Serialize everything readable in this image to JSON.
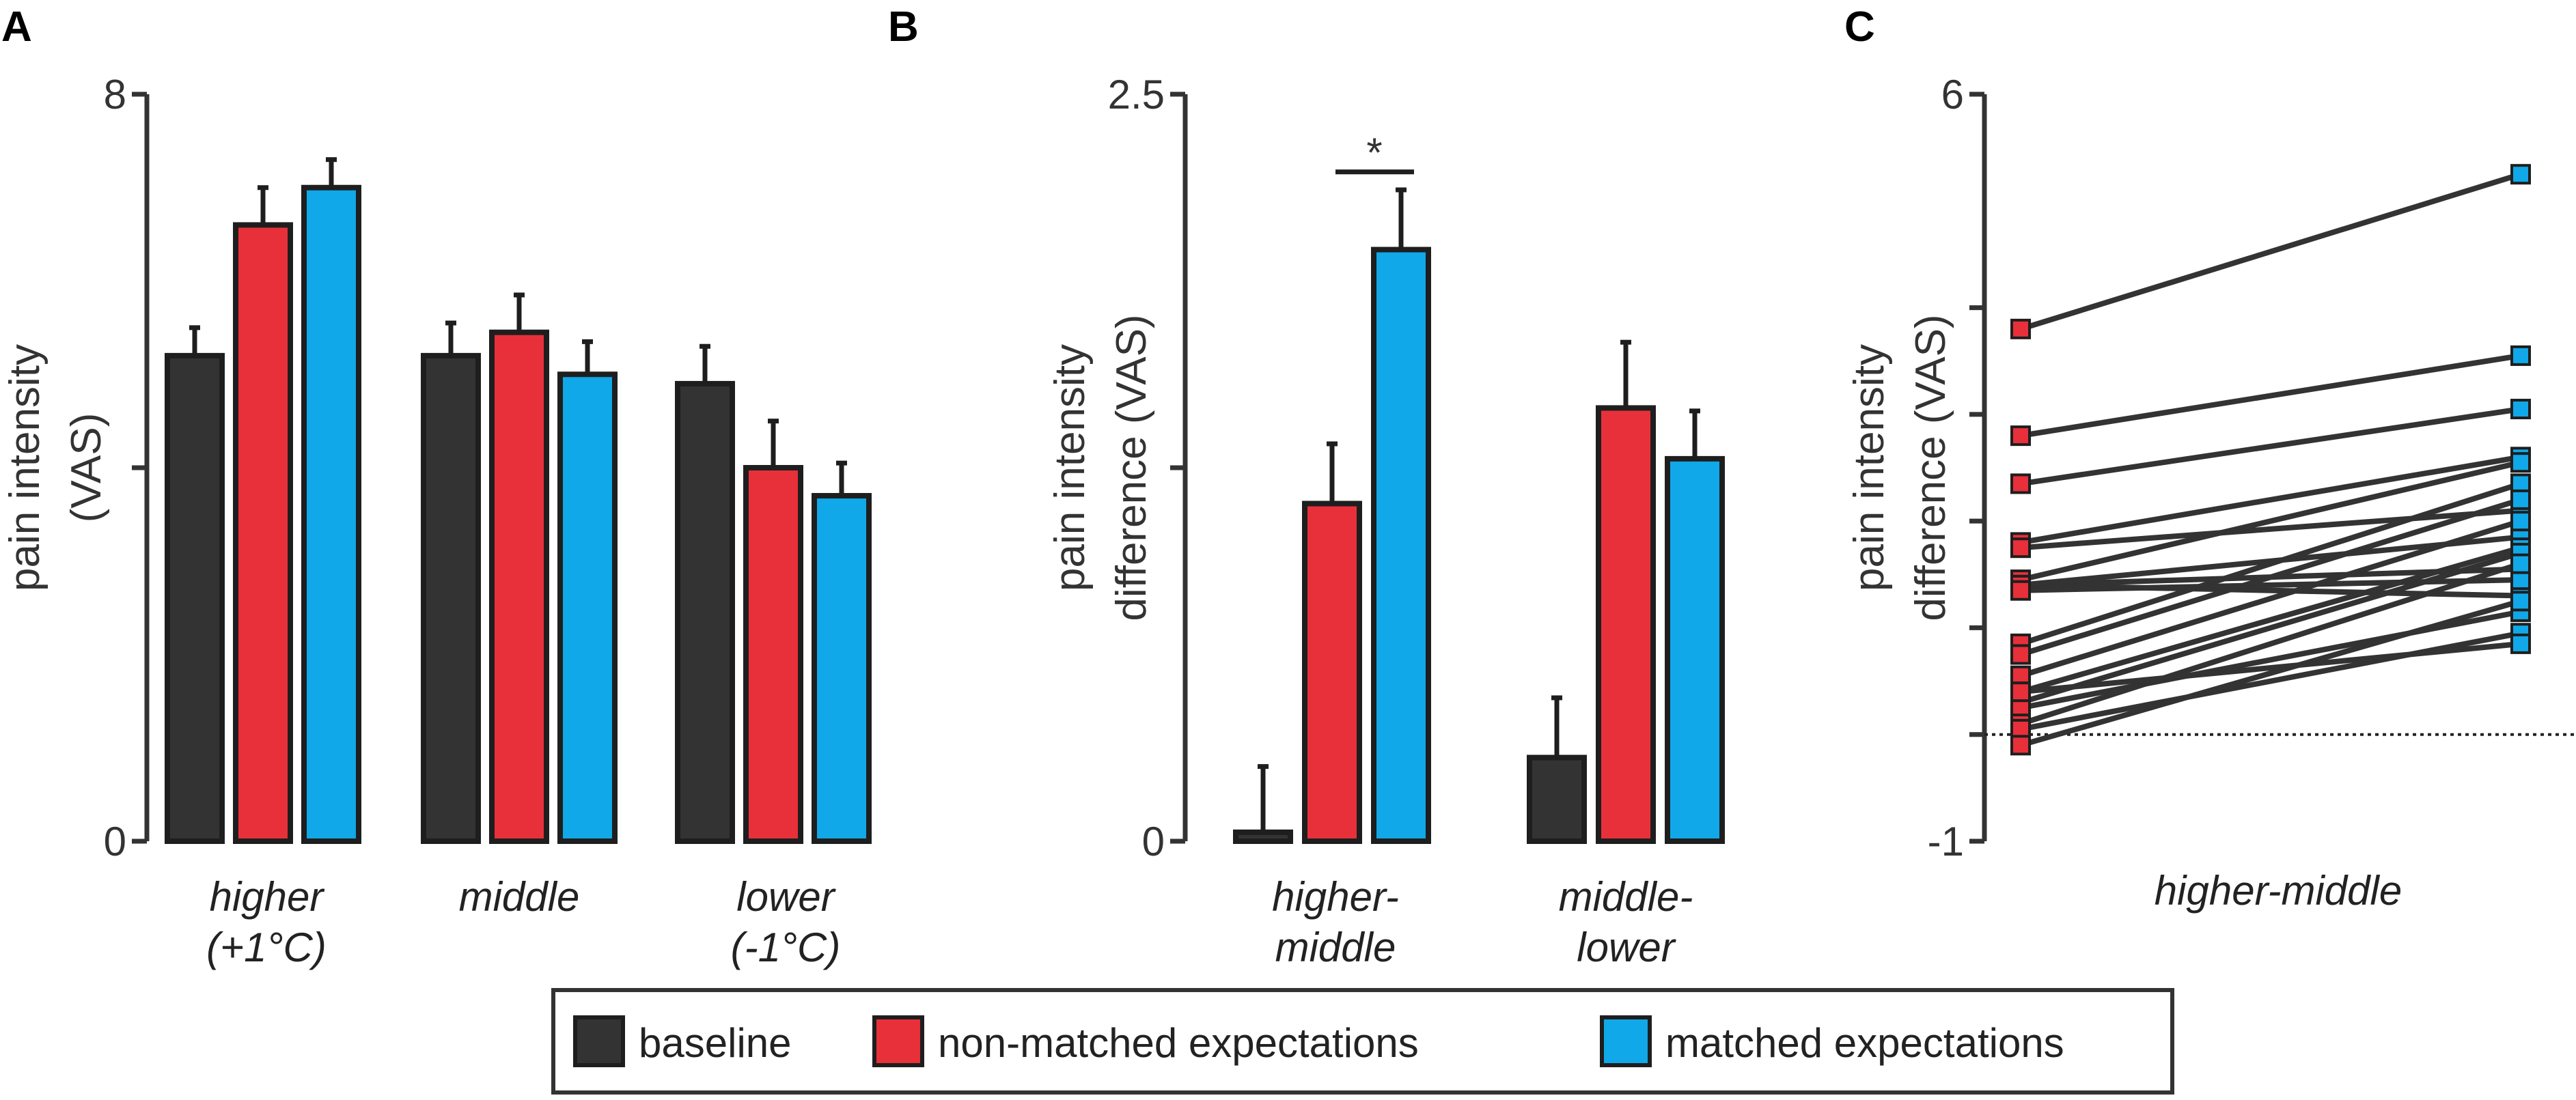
{
  "colors": {
    "baseline": "#333333",
    "non_matched": "#e8303a",
    "matched": "#10a8e8",
    "axis": "#333333"
  },
  "legend": {
    "items": [
      {
        "key": "baseline",
        "label": "baseline"
      },
      {
        "key": "non_matched",
        "label": "non-matched expectations"
      },
      {
        "key": "matched",
        "label": "matched expectations"
      }
    ]
  },
  "chart_data": [
    {
      "panel": "A",
      "type": "bar",
      "ylabel": [
        "pain intensity",
        "(VAS)"
      ],
      "ylim": [
        0,
        8
      ],
      "yticks": [
        "0",
        "4",
        "8"
      ],
      "yticks_values": [
        0,
        4,
        8
      ],
      "yticks_labeled": [
        "0",
        "8"
      ],
      "categories": [
        [
          "higher",
          "(+1°C)"
        ],
        [
          "middle"
        ],
        [
          "lower",
          "(-1°C)"
        ]
      ],
      "series": [
        {
          "name": "baseline",
          "values": [
            5.2,
            5.2,
            4.9
          ],
          "errors": [
            0.3,
            0.35,
            0.4
          ]
        },
        {
          "name": "non-matched expectations",
          "values": [
            6.6,
            5.45,
            4.0
          ],
          "errors": [
            0.4,
            0.4,
            0.5
          ]
        },
        {
          "name": "matched expectations",
          "values": [
            7.0,
            5.0,
            3.7
          ],
          "errors": [
            0.3,
            0.35,
            0.35
          ]
        }
      ]
    },
    {
      "panel": "B",
      "type": "bar",
      "ylabel": [
        "pain intensity",
        "difference (VAS)"
      ],
      "ylim": [
        0,
        2.5
      ],
      "yticks_values": [
        0,
        1.25,
        2.5
      ],
      "yticks_labeled": [
        "0",
        "2.5"
      ],
      "categories": [
        [
          "higher-",
          "middle"
        ],
        [
          "middle-",
          "lower"
        ]
      ],
      "series": [
        {
          "name": "baseline",
          "values": [
            0.03,
            0.28
          ],
          "errors": [
            0.22,
            0.2
          ]
        },
        {
          "name": "non-matched expectations",
          "values": [
            1.13,
            1.45
          ],
          "errors": [
            0.2,
            0.22
          ]
        },
        {
          "name": "matched expectations",
          "values": [
            1.98,
            1.28
          ],
          "errors": [
            0.2,
            0.16
          ]
        }
      ],
      "annotation": {
        "text": "*",
        "between": [
          "non-matched expectations",
          "matched expectations"
        ],
        "category": 0
      }
    },
    {
      "panel": "C",
      "type": "line",
      "ylabel": [
        "pain intensity",
        "difference (VAS)"
      ],
      "ylim": [
        -1,
        6
      ],
      "yticks_values": [
        -1,
        0,
        1,
        2,
        3,
        4,
        5,
        6
      ],
      "yticks_labeled": [
        "-1",
        "6"
      ],
      "reference_line": 0,
      "xlabel": "higher-middle",
      "series_points": [
        "non-matched expectations",
        "matched expectations"
      ],
      "pairs": [
        [
          3.8,
          5.25
        ],
        [
          2.8,
          3.55
        ],
        [
          2.35,
          3.05
        ],
        [
          1.8,
          2.6
        ],
        [
          1.75,
          2.1
        ],
        [
          1.45,
          2.55
        ],
        [
          1.4,
          1.55
        ],
        [
          1.4,
          1.3
        ],
        [
          1.4,
          1.85
        ],
        [
          1.35,
          1.45
        ],
        [
          0.85,
          2.35
        ],
        [
          0.75,
          2.2
        ],
        [
          0.55,
          2.0
        ],
        [
          0.4,
          1.75
        ],
        [
          0.3,
          1.7
        ],
        [
          0.25,
          1.15
        ],
        [
          0.1,
          1.6
        ],
        [
          0.05,
          0.95
        ],
        [
          -0.1,
          1.25
        ],
        [
          0.4,
          0.85
        ]
      ]
    }
  ]
}
